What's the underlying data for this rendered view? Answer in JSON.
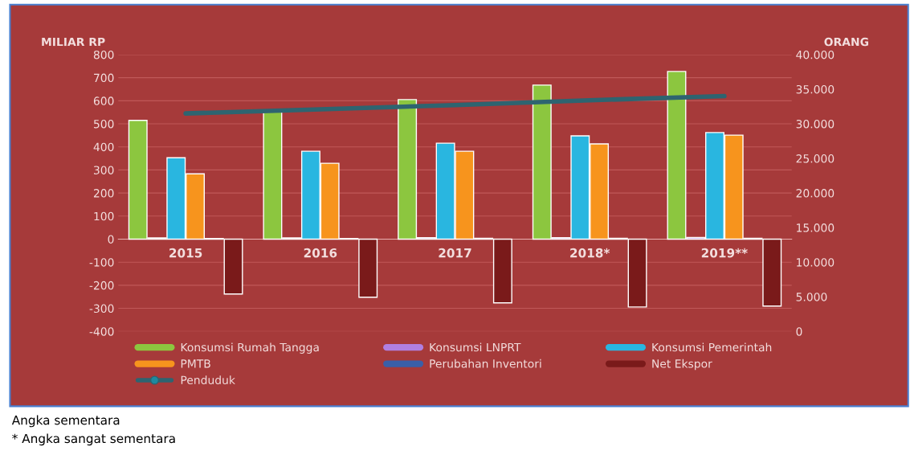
{
  "chart_data": {
    "type": "bar",
    "ylabel": "MILIAR RP",
    "y2label": "ORANG",
    "categories": [
      "2015",
      "2016",
      "2017",
      "2018*",
      "2019**"
    ],
    "series": [
      {
        "name": "Konsumsi Rumah Tangga",
        "color": "#8cc63f",
        "values": [
          515,
          552,
          605,
          668,
          727
        ]
      },
      {
        "name": "Konsumsi LNPRT",
        "color": "#b07fe0",
        "values": [
          5,
          5,
          6,
          6,
          7
        ]
      },
      {
        "name": "Konsumsi Pemerintah",
        "color": "#29b6e0",
        "values": [
          353,
          381,
          416,
          448,
          462
        ]
      },
      {
        "name": "PMTB",
        "color": "#f7941d",
        "values": [
          283,
          329,
          381,
          413,
          451
        ]
      },
      {
        "name": "Perubahan Inventori",
        "color": "#3a5fa8",
        "values": [
          3,
          3,
          4,
          4,
          4
        ]
      },
      {
        "name": "Net Ekspor",
        "color": "#7a1a1a",
        "values": [
          -238,
          -252,
          -276,
          -294,
          -290
        ]
      },
      {
        "name": "Penduduk",
        "type": "line",
        "axis": "y2",
        "color": "#2e6470",
        "values": [
          31500,
          32100,
          32700,
          33400,
          34000
        ]
      }
    ],
    "ylim": [
      -400,
      800
    ],
    "yticks": [
      -400,
      -300,
      -200,
      -100,
      0,
      100,
      200,
      300,
      400,
      500,
      600,
      700,
      800
    ],
    "y2lim": [
      0,
      40000
    ],
    "y2ticks": [
      0,
      {
        "value": 5000,
        "label": "5.000"
      },
      {
        "value": 10000,
        "label": "10.000"
      },
      {
        "value": 15000,
        "label": "15.000"
      },
      {
        "value": 20000,
        "label": "20.000"
      },
      {
        "value": 25000,
        "label": "25.000"
      },
      {
        "value": 30000,
        "label": "30.000"
      },
      {
        "value": 35000,
        "label": "35.000"
      },
      {
        "value": 40000,
        "label": "40.000"
      }
    ],
    "grid": "y",
    "legend": "bottom",
    "annotations": [
      "Angka sementara",
      "* Angka sangat sementara"
    ]
  }
}
